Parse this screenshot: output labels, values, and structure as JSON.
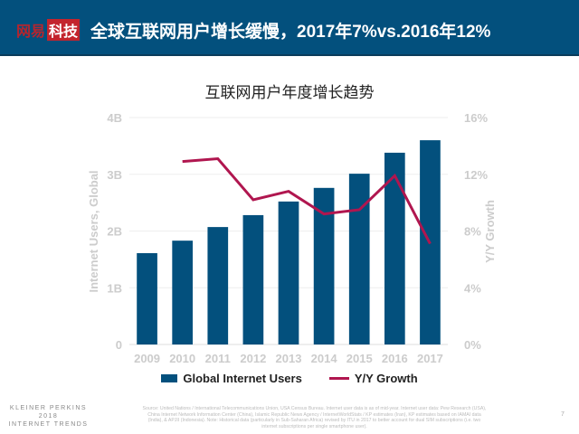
{
  "header": {
    "brand_left": "网易",
    "brand_right": "科技",
    "title": "全球互联网用户增长缓慢，2017年7%vs.2016年12%"
  },
  "chart_data": {
    "type": "bar+line",
    "title": "互联网用户年度增长趋势",
    "categories": [
      "2009",
      "2010",
      "2011",
      "2012",
      "2013",
      "2014",
      "2015",
      "2016",
      "2017"
    ],
    "series": [
      {
        "name": "Global Internet Users",
        "type": "bar",
        "axis": "left",
        "values": [
          1.61,
          1.83,
          2.07,
          2.28,
          2.52,
          2.76,
          3.01,
          3.38,
          3.6
        ],
        "color": "#03507d"
      },
      {
        "name": "Y/Y Growth",
        "type": "line",
        "axis": "right",
        "values": [
          null,
          12.9,
          13.1,
          10.2,
          10.8,
          9.2,
          9.5,
          11.9,
          7.1
        ],
        "color": "#b0164f"
      }
    ],
    "ylabel": "Internet Users, Global",
    "ylabel_right": "Y/Y Growth",
    "ylim": [
      0,
      4
    ],
    "ylim_right": [
      0,
      16
    ],
    "yticks": [
      "0",
      "1B",
      "2B",
      "3B",
      "4B"
    ],
    "yticks_right": [
      "0%",
      "4%",
      "8%",
      "12%",
      "16%"
    ],
    "grid": true,
    "legend": "bottom"
  },
  "footer": {
    "logo": [
      "KLEINER PERKINS",
      "2018",
      "INTERNET TRENDS"
    ],
    "source": "Source: United Nations / International Telecommunications Union, USA Census Bureau. Internet user data is as of mid-year. Internet user data: Pew Research (USA), China Internet Network Information Center (China), Islamic Republic News Agency / InternetWorldStats / KP estimates (Iran), KP estimates based on IAMAI data (India), & APJII (Indonesia). Note: Historical data (particularly in Sub-Saharan Africa) revised by ITU in 2017 to better account for dual SIM subscriptions (i.e. two internet subscriptions per single smartphone user).",
    "page": "7"
  }
}
